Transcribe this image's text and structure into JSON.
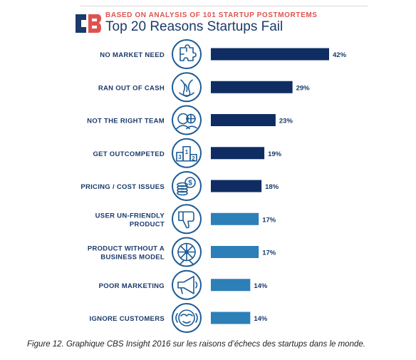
{
  "header": {
    "subtitle": "BASED ON ANALYSIS OF 101 STARTUP POSTMORTEMS",
    "title": "Top 20 Reasons Startups Fail"
  },
  "caption": "Figure 12. Graphique CBS Insight 2016 sur les raisons d’échecs des startups dans le monde.",
  "colors": {
    "dark_bar": "#0f2d63",
    "light_bar": "#2d7fb8",
    "icon_stroke": "#1e5c96",
    "label": "#1b3a6b",
    "accent": "#e0524f"
  },
  "chart_data": {
    "type": "bar",
    "orientation": "horizontal",
    "categories": [
      "NO MARKET NEED",
      "RAN OUT OF CASH",
      "NOT THE RIGHT TEAM",
      "GET OUTCOMPETED",
      "PRICING / COST ISSUES",
      "USER UN-FRIENDLY PRODUCT",
      "PRODUCT WITHOUT A BUSINESS MODEL",
      "POOR MARKETING",
      "IGNORE CUSTOMERS"
    ],
    "label_lines": [
      [
        "NO MARKET NEED"
      ],
      [
        "RAN OUT OF CASH"
      ],
      [
        "NOT THE RIGHT TEAM"
      ],
      [
        "GET OUTCOMPETED"
      ],
      [
        "PRICING / COST ISSUES"
      ],
      [
        "USER UN-FRIENDLY",
        "PRODUCT"
      ],
      [
        "PRODUCT WITHOUT A",
        "BUSINESS MODEL"
      ],
      [
        "POOR MARKETING"
      ],
      [
        "IGNORE CUSTOMERS"
      ]
    ],
    "values": [
      42,
      29,
      23,
      19,
      18,
      17,
      17,
      14,
      14
    ],
    "value_labels": [
      "42%",
      "29%",
      "23%",
      "19%",
      "18%",
      "17%",
      "17%",
      "14%",
      "14%"
    ],
    "icons": [
      "puzzle-icon",
      "empty-wallet-icon",
      "team-icon",
      "podium-icon",
      "coins-dollar-icon",
      "thumbs-down-icon",
      "hamster-wheel-icon",
      "megaphone-icon",
      "ignoring-face-icon"
    ],
    "bar_shade": [
      "dark",
      "dark",
      "dark",
      "dark",
      "dark",
      "light",
      "light",
      "light",
      "light"
    ],
    "podium_numbers": [
      "3",
      "1",
      "2"
    ],
    "coin_symbol": "$",
    "xlim": [
      0,
      42
    ],
    "xlabel": "",
    "ylabel": ""
  }
}
